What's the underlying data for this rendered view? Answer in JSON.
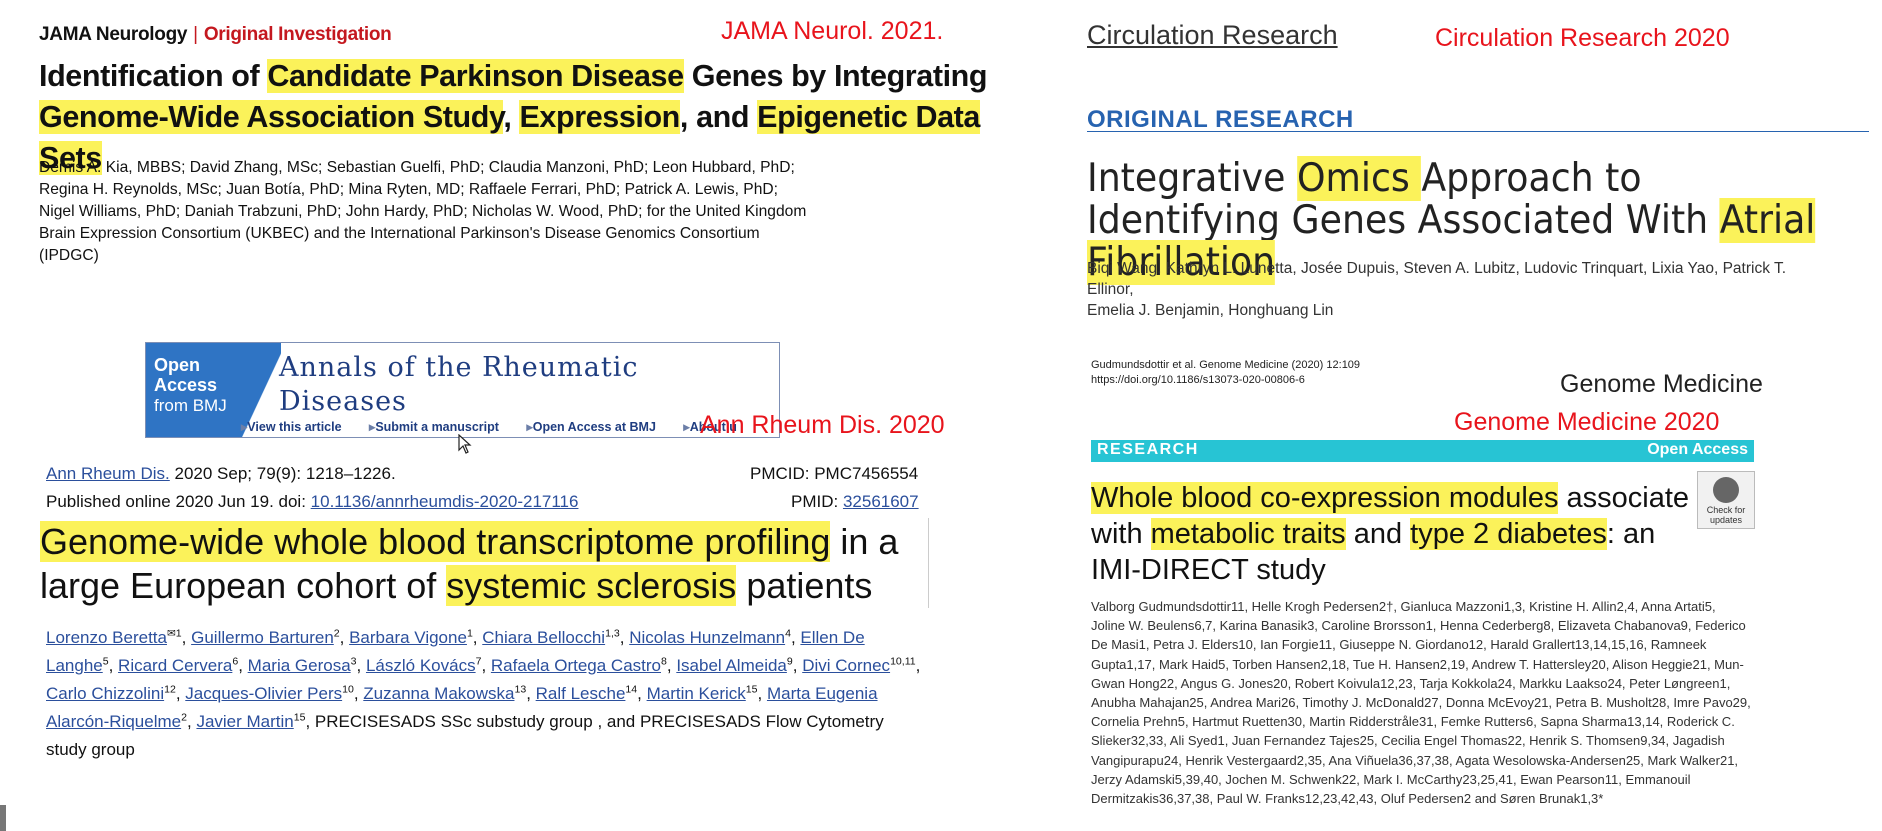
{
  "jama": {
    "brand": "JAMA Neurology",
    "separator": "|",
    "category": "Original Investigation",
    "title": {
      "p1": "Identification of ",
      "h1": "Candidate Parkinson Disease",
      "p2": " Genes by Integrating ",
      "h2": "Genome-Wide Association Study",
      "p3": ", ",
      "h3": "Expression",
      "p4": ", and ",
      "h4": "Epigenetic Data Sets"
    },
    "authors": [
      "Demis A. Kia, MBBS; David Zhang, MSc; Sebastian Guelfi, PhD; Claudia Manzoni, PhD; Leon Hubbard, PhD;",
      "Regina H. Reynolds, MSc; Juan Botía, PhD; Mina Ryten, MD; Raffaele Ferrari, PhD; Patrick A. Lewis, PhD;",
      "Nigel Williams, PhD; Daniah Trabzuni, PhD; John Hardy, PhD; Nicholas W. Wood, PhD; for the United Kingdom",
      "Brain Expression Consortium (UKBEC) and the International Parkinson's Disease Genomics Consortium (IPDGC)"
    ],
    "annotation": "JAMA Neurol. 2021."
  },
  "circ": {
    "brand": "Circulation Research",
    "annotation": "Circulation Research 2020",
    "section": "ORIGINAL RESEARCH",
    "title": {
      "p1": "Integrative ",
      "h1": "Omics ",
      "p2": "Approach to Identifying Genes Associated With ",
      "h2": "Atrial Fibrillation"
    },
    "authors": [
      "Biqi Wang, Kathryn L. Lunetta, Josée Dupuis, Steven A. Lubitz, Ludovic Trinquart, Lixia Yao, Patrick T. Ellinor,",
      "Emelia J. Benjamin, Honghuang Lin"
    ]
  },
  "annals": {
    "oa1": "Open",
    "oa2": "Access",
    "oa3": "from BMJ",
    "name1": "Annals of the Rheumatic",
    "name2": "Diseases",
    "links": [
      "View this article",
      "Submit a manuscript",
      "Open Access at BMJ",
      "About u"
    ],
    "annotation": "Ann Rheum Dis. 2020",
    "cite_journal": "Ann Rheum Dis.",
    "cite_rest": " 2020 Sep; 79(9): 1218–1226.",
    "published": "Published online 2020 Jun 19. doi: ",
    "doi": "10.1136/annrheumdis-2020-217116",
    "pmcid": "PMCID: PMC7456554",
    "pmid_label": "PMID: ",
    "pmid": "32561607",
    "title": {
      "h1": "Genome-wide whole blood transcriptome profiling",
      "p1": " in a large European cohort of ",
      "h2": "systemic sclerosis",
      "p2": " patients"
    },
    "authors": [
      {
        "n": "Lorenzo Beretta",
        "s": "✉1"
      },
      {
        "n": "Guillermo Barturen",
        "s": "2"
      },
      {
        "n": "Barbara Vigone",
        "s": "1"
      },
      {
        "n": "Chiara Bellocchi",
        "s": "1,3"
      },
      {
        "n": "Nicolas Hunzelmann",
        "s": "4"
      },
      {
        "n": "Ellen De Langhe",
        "s": "5"
      },
      {
        "n": "Ricard Cervera",
        "s": "6"
      },
      {
        "n": "Maria Gerosa",
        "s": "3"
      },
      {
        "n": "László Kovács",
        "s": "7"
      },
      {
        "n": "Rafaela Ortega Castro",
        "s": "8"
      },
      {
        "n": "Isabel Almeida",
        "s": "9"
      },
      {
        "n": "Divi Cornec",
        "s": "10,11"
      },
      {
        "n": "Carlo Chizzolini",
        "s": "12"
      },
      {
        "n": "Jacques-Olivier Pers",
        "s": "10"
      },
      {
        "n": "Zuzanna Makowska",
        "s": "13"
      },
      {
        "n": "Ralf Lesche",
        "s": "14"
      },
      {
        "n": "Martin Kerick",
        "s": "15"
      },
      {
        "n": "Marta Eugenia Alarcón-Riquelme",
        "s": "2"
      },
      {
        "n": "Javier Martin",
        "s": "15"
      }
    ],
    "authors_tail": "PRECISESADS SSc substudy group , and PRECISESADS Flow Cytometry study group"
  },
  "gm": {
    "cite_line1": "Gudmundsdottir et al. Genome Medicine        (2020) 12:109",
    "cite_line2": "https://doi.org/10.1186/s13073-020-00806-6",
    "brand": "Genome Medicine",
    "annotation": "Genome Medicine 2020",
    "bar_left": "RESEARCH",
    "bar_right": "Open Access",
    "check1": "Check for",
    "check2": "updates",
    "title": {
      "h1": "Whole blood co-expression modules",
      "p1": " associate with ",
      "h2": "metabolic traits",
      "p2": " and ",
      "h3": "type 2 diabetes",
      "p3": ": an IMI-DIRECT study"
    },
    "authors": "Valborg Gudmundsdottir11, Helle Krogh Pedersen2†, Gianluca Mazzoni1,3, Kristine H. Allin2,4, Anna Artati5, Joline W. Beulens6,7, Karina Banasik3, Caroline Brorsson1, Henna Cederberg8, Elizaveta Chabanova9, Federico De Masi1, Petra J. Elders10, Ian Forgie11, Giuseppe N. Giordano12, Harald Grallert13,14,15,16, Ramneek Gupta1,17, Mark Haid5, Torben Hansen2,18, Tue H. Hansen2,19, Andrew T. Hattersley20, Alison Heggie21, Mun-Gwan Hong22, Angus G. Jones20, Robert Koivula12,23, Tarja Kokkola24, Markku Laakso24, Peter Løngreen1, Anubha Mahajan25, Andrea Mari26, Timothy J. McDonald27, Donna McEvoy21, Petra B. Musholt28, Imre Pavo29, Cornelia Prehn5, Hartmut Ruetten30, Martin Ridderstråle31, Femke Rutters6, Sapna Sharma13,14, Roderick C. Slieker32,33, Ali Syed1, Juan Fernandez Tajes25, Cecilia Engel Thomas22, Henrik S. Thomsen9,34, Jagadish Vangipurapu24, Henrik Vestergaard2,35, Ana Viñuela36,37,38, Agata Wesolowska-Andersen25, Mark Walker21, Jerzy Adamski5,39,40, Jochen M. Schwenk22, Mark I. McCarthy23,25,41, Ewan Pearson11, Emmanouil Dermitzakis36,37,38, Paul W. Franks12,23,42,43, Oluf Pedersen2 and Søren Brunak1,3*"
  }
}
